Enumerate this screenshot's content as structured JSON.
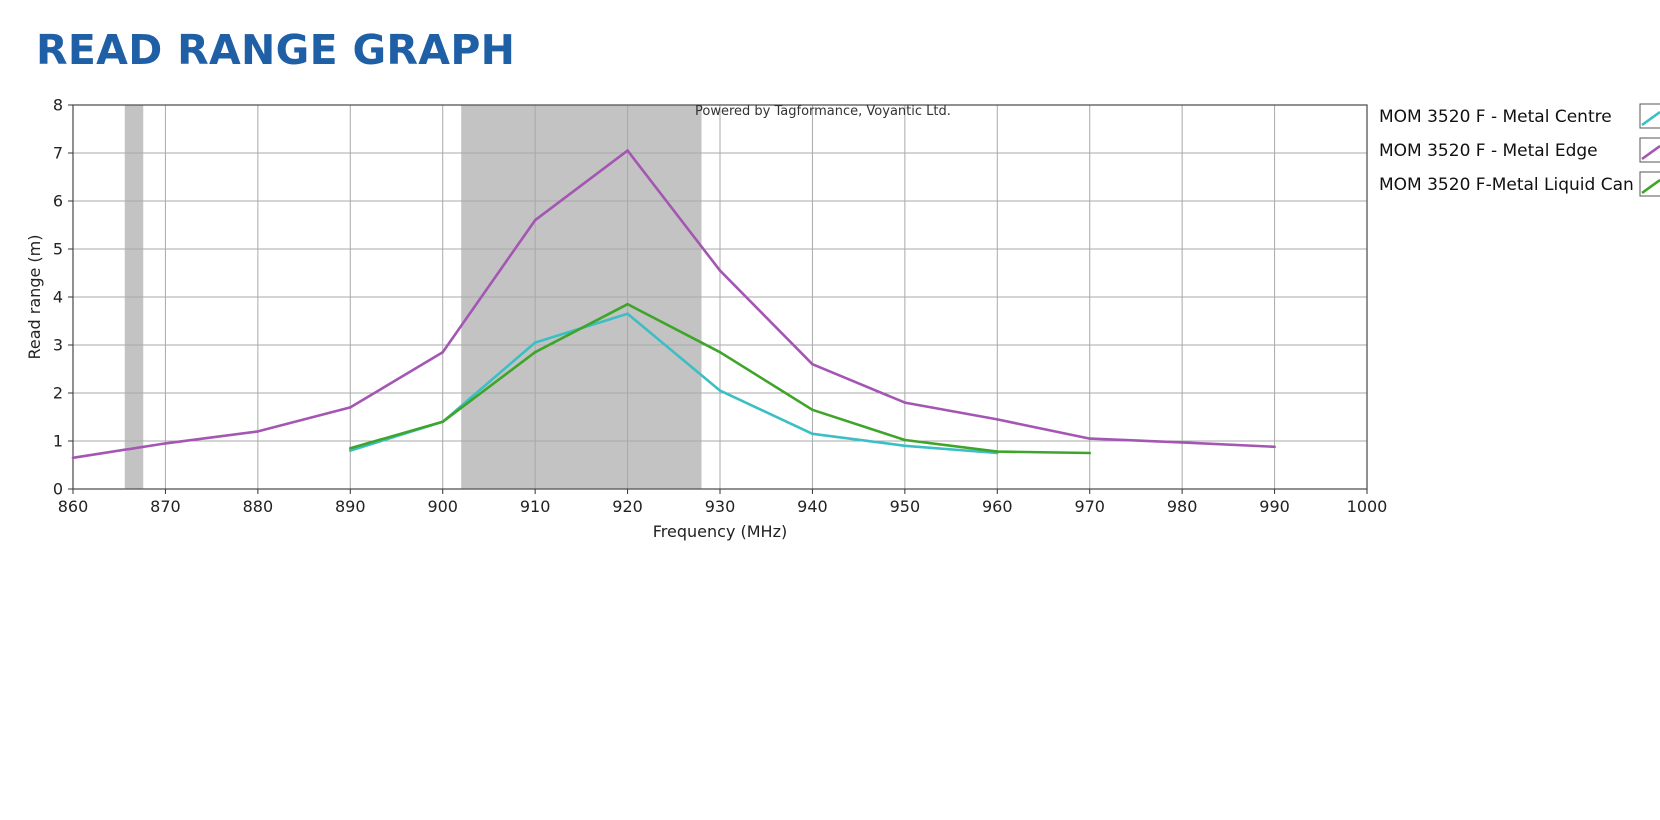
{
  "page_title": "READ RANGE GRAPH",
  "chart_data": {
    "type": "line",
    "title": "",
    "watermark": "Powered by Tagformance, Voyantic Ltd.",
    "xlabel": "Frequency (MHz)",
    "ylabel": "Read range (m)",
    "xlim": [
      860,
      1000
    ],
    "ylim": [
      0,
      8
    ],
    "x_ticks": [
      860,
      870,
      880,
      890,
      900,
      910,
      920,
      930,
      940,
      950,
      960,
      970,
      980,
      990,
      1000
    ],
    "y_ticks": [
      0,
      1,
      2,
      3,
      4,
      5,
      6,
      7,
      8
    ],
    "grid": true,
    "legend_position": "right",
    "shaded_bands": [
      {
        "x_start": 865.6,
        "x_end": 867.6,
        "color": "#c3c3c3"
      },
      {
        "x_start": 902,
        "x_end": 928,
        "color": "#c3c3c3"
      }
    ],
    "series": [
      {
        "name": "MOM 3520 F - Metal Centre",
        "color": "#3bbfc4",
        "x": [
          890,
          900,
          910,
          920,
          930,
          940,
          950,
          960
        ],
        "y": [
          0.8,
          1.4,
          3.05,
          3.65,
          2.05,
          1.15,
          0.9,
          0.75
        ]
      },
      {
        "name": "MOM 3520 F - Metal Edge",
        "color": "#a456b3",
        "x": [
          860,
          870,
          880,
          890,
          900,
          910,
          920,
          930,
          940,
          950,
          960,
          970,
          980,
          990
        ],
        "y": [
          0.65,
          0.95,
          1.2,
          1.7,
          2.85,
          5.6,
          7.05,
          4.55,
          2.6,
          1.8,
          1.45,
          1.05,
          0.97,
          0.88
        ]
      },
      {
        "name": "MOM 3520 F-Metal Liquid Can",
        "color": "#3fa52a",
        "x": [
          890,
          900,
          910,
          920,
          930,
          940,
          950,
          960,
          970
        ],
        "y": [
          0.85,
          1.4,
          2.85,
          3.85,
          2.85,
          1.65,
          1.02,
          0.78,
          0.75
        ]
      }
    ]
  }
}
